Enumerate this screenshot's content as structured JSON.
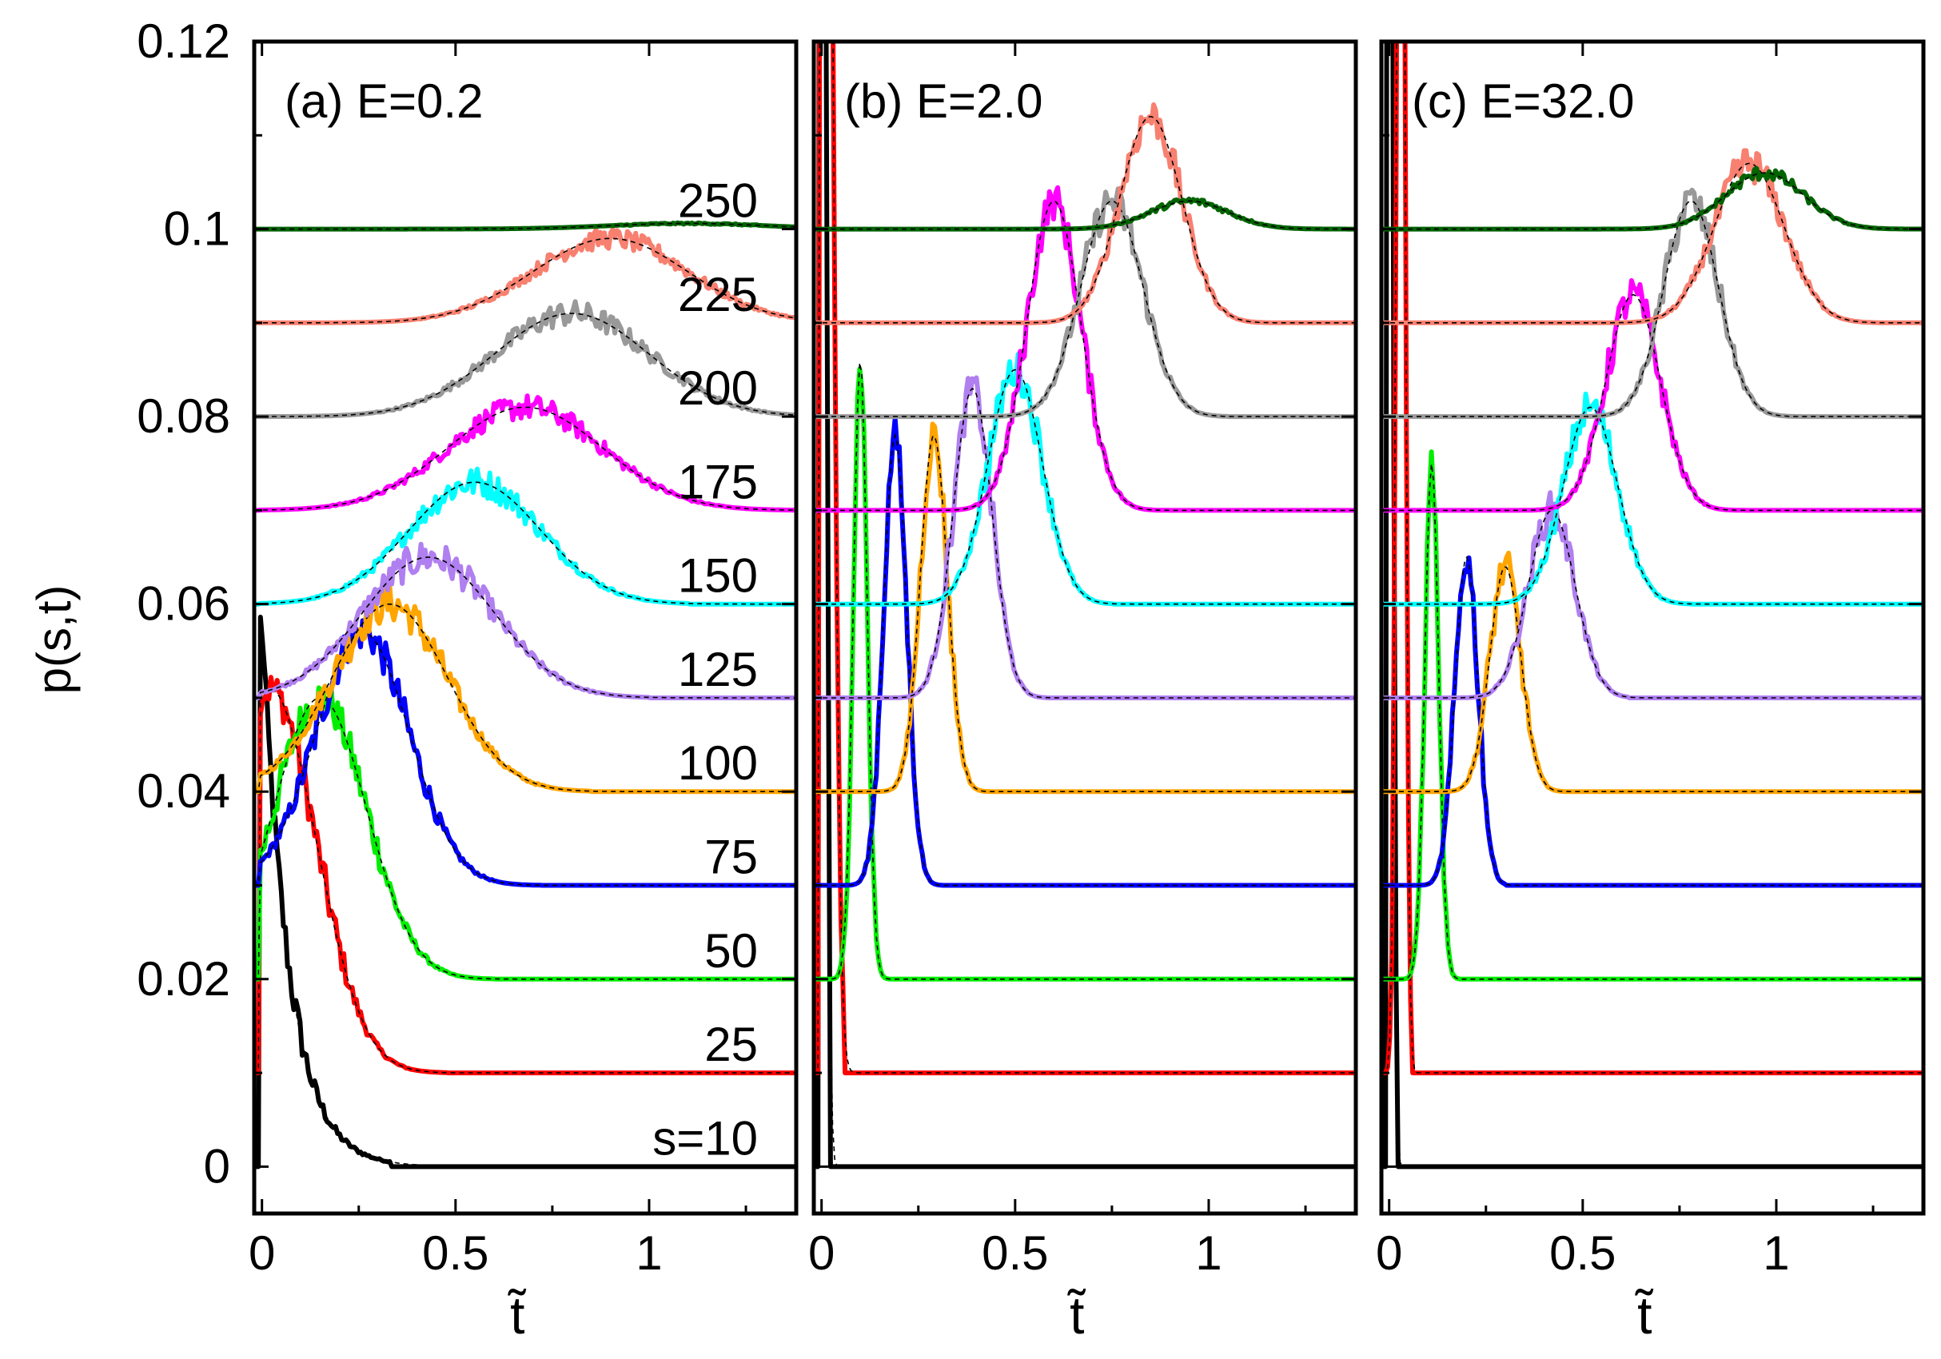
{
  "figure": {
    "ylabel": "p(s,t)",
    "xlabel": "t̃"
  },
  "chart_data": [
    {
      "type": "line",
      "title": "(a) E=0.2",
      "xlabel": "t̃",
      "ylabel": "p(s,t)",
      "xlim": [
        -0.02,
        1.38
      ],
      "ylim": [
        -0.005,
        0.12
      ],
      "xticks": [
        0,
        0.5,
        1
      ],
      "xtick_labels": [
        "0",
        "0.5",
        "1"
      ],
      "yticks": [
        0,
        0.02,
        0.04,
        0.06,
        0.08,
        0.1,
        0.12
      ],
      "ytick_labels": [
        "0",
        "0.02",
        "0.04",
        "0.06",
        "0.08",
        "0.1",
        "0.12"
      ],
      "series": [
        {
          "name": "s=10",
          "label": "s=10",
          "color": "#000000",
          "baseline": 0.0,
          "peak_t": 0.0,
          "peak_h": 0.058,
          "width": 0.07,
          "shape": "decay",
          "end_t": 0.33
        },
        {
          "name": "25",
          "label": "25",
          "color": "#ff0000",
          "baseline": 0.01,
          "peak_t": 0.02,
          "peak_h": 0.041,
          "width": 0.12,
          "shape": "peak",
          "end_t": 0.48
        },
        {
          "name": "50",
          "label": "50",
          "color": "#00ee00",
          "baseline": 0.02,
          "peak_t": 0.15,
          "peak_h": 0.03,
          "width": 0.12,
          "shape": "peak",
          "end_t": 0.6
        },
        {
          "name": "75",
          "label": "75",
          "color": "#0000ff",
          "baseline": 0.03,
          "peak_t": 0.26,
          "peak_h": 0.027,
          "width": 0.12,
          "shape": "peak",
          "end_t": 0.72
        },
        {
          "name": "100",
          "label": "100",
          "color": "#ffa500",
          "baseline": 0.04,
          "peak_t": 0.33,
          "peak_h": 0.02,
          "width": 0.15,
          "shape": "peak",
          "end_t": 0.85
        },
        {
          "name": "125",
          "label": "125",
          "color": "#b07ff0",
          "baseline": 0.05,
          "peak_t": 0.43,
          "peak_h": 0.015,
          "width": 0.17,
          "shape": "peak",
          "end_t": 1.0
        },
        {
          "name": "150",
          "label": "150",
          "color": "#00ffff",
          "baseline": 0.06,
          "peak_t": 0.55,
          "peak_h": 0.013,
          "width": 0.17,
          "shape": "peak",
          "end_t": 1.1
        },
        {
          "name": "175",
          "label": "175",
          "color": "#ff00ff",
          "baseline": 0.07,
          "peak_t": 0.68,
          "peak_h": 0.011,
          "width": 0.2,
          "shape": "peak",
          "end_t": 1.38
        },
        {
          "name": "200",
          "label": "200",
          "color": "#999999",
          "baseline": 0.08,
          "peak_t": 0.8,
          "peak_h": 0.011,
          "width": 0.2,
          "shape": "peak",
          "end_t": 1.38
        },
        {
          "name": "225",
          "label": "225",
          "color": "#f88070",
          "baseline": 0.09,
          "peak_t": 0.9,
          "peak_h": 0.009,
          "width": 0.2,
          "shape": "peak",
          "end_t": 1.38
        },
        {
          "name": "250",
          "label": "250",
          "color": "#006400",
          "baseline": 0.1,
          "peak_t": 1.1,
          "peak_h": 0.0006,
          "width": 0.2,
          "shape": "peak",
          "end_t": 1.38
        }
      ]
    },
    {
      "type": "line",
      "title": "(b) E=2.0",
      "xlabel": "t̃",
      "xlim": [
        -0.02,
        1.38
      ],
      "ylim": [
        -0.005,
        0.12
      ],
      "xticks": [
        0,
        0.5,
        1
      ],
      "xtick_labels": [
        "0",
        "0.5",
        "1"
      ],
      "series": [
        {
          "name": "s=10",
          "color": "#000000",
          "baseline": 0.0,
          "peak_t": 0.0,
          "peak_h": 0.25,
          "width": 0.01,
          "shape": "spike",
          "end_t": 0.02
        },
        {
          "name": "25",
          "color": "#ff0000",
          "baseline": 0.01,
          "peak_t": 0.01,
          "peak_h": 0.2,
          "width": 0.018,
          "shape": "peak",
          "end_t": 0.06
        },
        {
          "name": "50",
          "color": "#00ee00",
          "baseline": 0.02,
          "peak_t": 0.1,
          "peak_h": 0.066,
          "width": 0.018,
          "shape": "peak",
          "end_t": 0.18
        },
        {
          "name": "75",
          "color": "#0000ff",
          "baseline": 0.03,
          "peak_t": 0.19,
          "peak_h": 0.048,
          "width": 0.03,
          "shape": "peak",
          "end_t": 0.31
        },
        {
          "name": "100",
          "color": "#ffa500",
          "baseline": 0.04,
          "peak_t": 0.29,
          "peak_h": 0.038,
          "width": 0.035,
          "shape": "peak",
          "end_t": 0.45
        },
        {
          "name": "125",
          "color": "#b07ff0",
          "baseline": 0.05,
          "peak_t": 0.39,
          "peak_h": 0.033,
          "width": 0.05,
          "shape": "peak",
          "end_t": 0.58
        },
        {
          "name": "150",
          "color": "#00ffff",
          "baseline": 0.06,
          "peak_t": 0.5,
          "peak_h": 0.025,
          "width": 0.07,
          "shape": "peak",
          "end_t": 0.75
        },
        {
          "name": "175",
          "color": "#ff00ff",
          "baseline": 0.07,
          "peak_t": 0.6,
          "peak_h": 0.033,
          "width": 0.07,
          "shape": "peak",
          "end_t": 0.9
        },
        {
          "name": "200",
          "color": "#999999",
          "baseline": 0.08,
          "peak_t": 0.75,
          "peak_h": 0.023,
          "width": 0.08,
          "shape": "peak",
          "end_t": 1.05
        },
        {
          "name": "225",
          "color": "#f88070",
          "baseline": 0.09,
          "peak_t": 0.85,
          "peak_h": 0.022,
          "width": 0.08,
          "shape": "peak",
          "end_t": 1.38
        },
        {
          "name": "250",
          "color": "#006400",
          "baseline": 0.1,
          "peak_t": 0.95,
          "peak_h": 0.003,
          "width": 0.1,
          "shape": "peak",
          "end_t": 1.38
        }
      ]
    },
    {
      "type": "line",
      "title": "(c) E=32.0",
      "xlabel": "t̃",
      "xlim": [
        -0.02,
        1.38
      ],
      "ylim": [
        -0.005,
        0.12
      ],
      "xticks": [
        0,
        0.5,
        1
      ],
      "xtick_labels": [
        "0",
        "0.5",
        "1"
      ],
      "series": [
        {
          "name": "s=10",
          "color": "#000000",
          "baseline": 0.0,
          "peak_t": 0.0,
          "peak_h": 0.25,
          "width": 0.008,
          "shape": "spike",
          "end_t": 0.02
        },
        {
          "name": "25",
          "color": "#ff0000",
          "baseline": 0.01,
          "peak_t": 0.03,
          "peak_h": 0.2,
          "width": 0.01,
          "shape": "peak",
          "end_t": 0.06
        },
        {
          "name": "50",
          "color": "#00ee00",
          "baseline": 0.02,
          "peak_t": 0.11,
          "peak_h": 0.055,
          "width": 0.018,
          "shape": "peak",
          "end_t": 0.18
        },
        {
          "name": "75",
          "color": "#0000ff",
          "baseline": 0.03,
          "peak_t": 0.2,
          "peak_h": 0.035,
          "width": 0.03,
          "shape": "peak",
          "end_t": 0.3
        },
        {
          "name": "100",
          "color": "#ffa500",
          "baseline": 0.04,
          "peak_t": 0.3,
          "peak_h": 0.024,
          "width": 0.04,
          "shape": "peak",
          "end_t": 0.45
        },
        {
          "name": "125",
          "color": "#b07ff0",
          "baseline": 0.05,
          "peak_t": 0.42,
          "peak_h": 0.02,
          "width": 0.06,
          "shape": "peak",
          "end_t": 0.62
        },
        {
          "name": "150",
          "color": "#00ffff",
          "baseline": 0.06,
          "peak_t": 0.52,
          "peak_h": 0.021,
          "width": 0.07,
          "shape": "peak",
          "end_t": 0.78
        },
        {
          "name": "175",
          "color": "#ff00ff",
          "baseline": 0.07,
          "peak_t": 0.63,
          "peak_h": 0.023,
          "width": 0.07,
          "shape": "peak",
          "end_t": 0.95
        },
        {
          "name": "200",
          "color": "#999999",
          "baseline": 0.08,
          "peak_t": 0.78,
          "peak_h": 0.023,
          "width": 0.07,
          "shape": "peak",
          "end_t": 1.1
        },
        {
          "name": "225",
          "color": "#f88070",
          "baseline": 0.09,
          "peak_t": 0.93,
          "peak_h": 0.017,
          "width": 0.09,
          "shape": "peak",
          "end_t": 1.38
        },
        {
          "name": "250",
          "color": "#006400",
          "baseline": 0.1,
          "peak_t": 0.97,
          "peak_h": 0.006,
          "width": 0.1,
          "shape": "peak",
          "end_t": 1.38
        }
      ]
    }
  ]
}
